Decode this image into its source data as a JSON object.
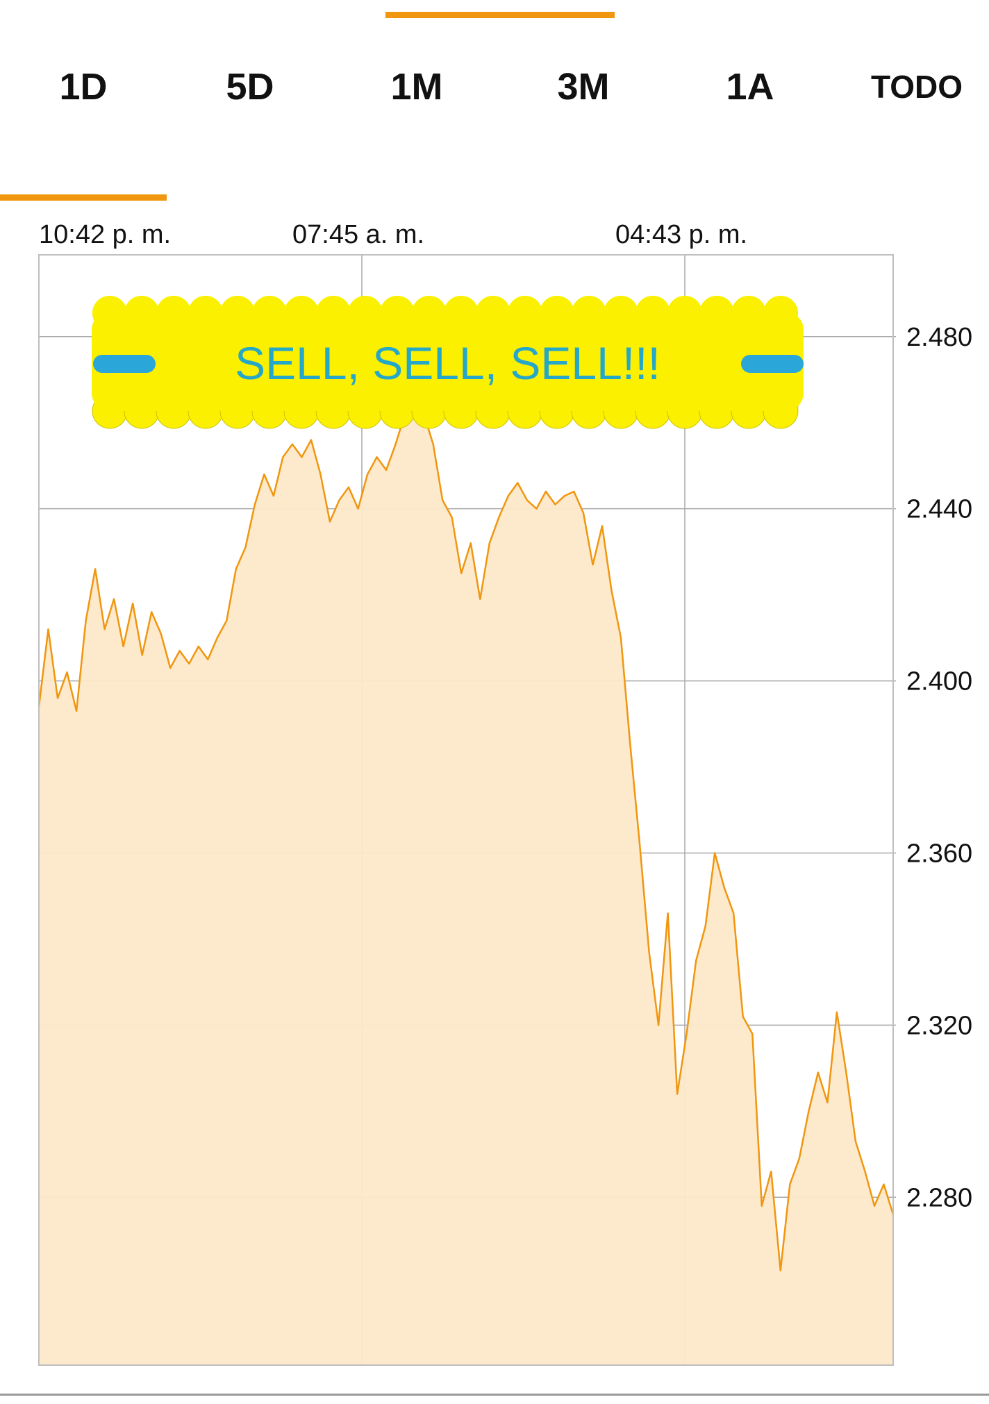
{
  "tabs": [
    {
      "label": "1D",
      "active": true
    },
    {
      "label": "5D",
      "active": false
    },
    {
      "label": "1M",
      "active": false
    },
    {
      "label": "3M",
      "active": false
    },
    {
      "label": "1A",
      "active": false
    },
    {
      "label": "TODO",
      "active": false
    }
  ],
  "colors": {
    "accent": "#f0960f",
    "area_fill": "#fde8c8",
    "banner_yellow": "#fbf000",
    "banner_text": "#24a7c8",
    "banner_dash": "#2aa6d8"
  },
  "banner": {
    "text": "SELL, SELL, SELL!!!"
  },
  "chart_data": {
    "type": "area",
    "x_tick_labels": [
      "10:42 p. m.",
      "07:45 a. m.",
      "04:43 p. m."
    ],
    "y_tick_labels": [
      "2.480",
      "2.440",
      "2.400",
      "2.360",
      "2.320",
      "2.280"
    ],
    "y_ticks": [
      2.48,
      2.44,
      2.4,
      2.36,
      2.32,
      2.28
    ],
    "ylim": [
      2.241,
      2.499
    ],
    "grid": true,
    "series": [
      {
        "values": [
          2.394,
          2.412,
          2.396,
          2.402,
          2.393,
          2.414,
          2.426,
          2.412,
          2.419,
          2.408,
          2.418,
          2.406,
          2.416,
          2.411,
          2.403,
          2.407,
          2.404,
          2.408,
          2.405,
          2.41,
          2.414,
          2.426,
          2.431,
          2.441,
          2.448,
          2.443,
          2.452,
          2.455,
          2.452,
          2.456,
          2.448,
          2.437,
          2.442,
          2.445,
          2.44,
          2.448,
          2.452,
          2.449,
          2.455,
          2.462,
          2.47,
          2.462,
          2.455,
          2.442,
          2.438,
          2.425,
          2.432,
          2.419,
          2.432,
          2.438,
          2.443,
          2.446,
          2.442,
          2.44,
          2.444,
          2.441,
          2.443,
          2.444,
          2.439,
          2.427,
          2.436,
          2.421,
          2.41,
          2.385,
          2.362,
          2.337,
          2.32,
          2.346,
          2.304,
          2.318,
          2.335,
          2.343,
          2.36,
          2.352,
          2.346,
          2.322,
          2.318,
          2.278,
          2.286,
          2.263,
          2.283,
          2.289,
          2.3,
          2.309,
          2.302,
          2.323,
          2.309,
          2.293,
          2.286,
          2.278,
          2.283,
          2.276
        ]
      }
    ]
  }
}
